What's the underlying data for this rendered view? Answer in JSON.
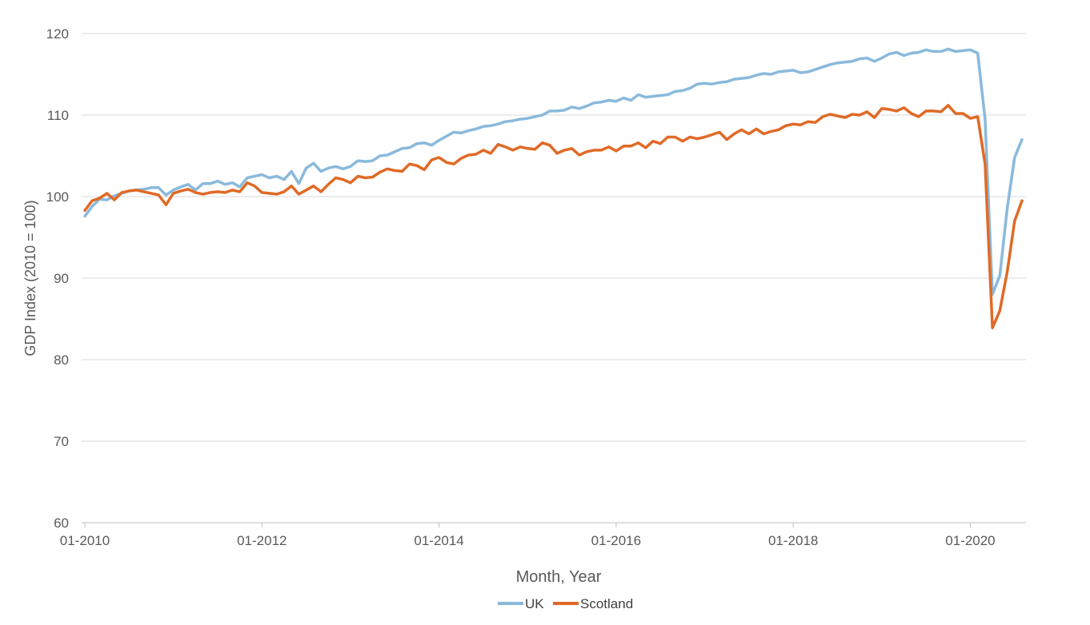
{
  "chart_data": {
    "type": "line",
    "title": "",
    "xlabel": "Month, Year",
    "ylabel": "GDP Index (2010 = 100)",
    "ylim": [
      60,
      120
    ],
    "yticks": [
      60,
      70,
      80,
      90,
      100,
      110,
      120
    ],
    "xticks": [
      {
        "label": "01-2010",
        "index": 0
      },
      {
        "label": "01-2012",
        "index": 24
      },
      {
        "label": "01-2014",
        "index": 48
      },
      {
        "label": "01-2016",
        "index": 72
      },
      {
        "label": "01-2018",
        "index": 96
      },
      {
        "label": "01-2020",
        "index": 120
      }
    ],
    "grid": true,
    "legend": "bottom-center",
    "x_start": "01-2010",
    "x_end": "08-2020",
    "series": [
      {
        "name": "UK",
        "color": "#8ab9dc",
        "values": [
          97.6,
          98.8,
          99.7,
          99.6,
          100.1,
          100.4,
          100.7,
          100.8,
          100.9,
          101.1,
          101.1,
          100.2,
          100.8,
          101.2,
          101.5,
          100.8,
          101.6,
          101.6,
          101.9,
          101.5,
          101.7,
          101.2,
          102.3,
          102.5,
          102.7,
          102.3,
          102.5,
          102.1,
          103.1,
          101.6,
          103.5,
          104.1,
          103.1,
          103.5,
          103.7,
          103.4,
          103.7,
          104.4,
          104.3,
          104.4,
          105.0,
          105.1,
          105.5,
          105.9,
          106.0,
          106.5,
          106.6,
          106.3,
          106.9,
          107.4,
          107.9,
          107.8,
          108.1,
          108.3,
          108.6,
          108.7,
          108.9,
          109.2,
          109.3,
          109.5,
          109.6,
          109.8,
          110.0,
          110.5,
          110.5,
          110.6,
          111.0,
          110.8,
          111.1,
          111.5,
          111.6,
          111.8,
          111.7,
          112.1,
          111.8,
          112.5,
          112.2,
          112.3,
          112.4,
          112.5,
          112.9,
          113.0,
          113.3,
          113.8,
          113.9,
          113.8,
          114.0,
          114.1,
          114.4,
          114.5,
          114.6,
          114.9,
          115.1,
          115.0,
          115.3,
          115.4,
          115.5,
          115.2,
          115.3,
          115.6,
          115.9,
          116.2,
          116.4,
          116.5,
          116.6,
          116.9,
          117.0,
          116.6,
          117.0,
          117.5,
          117.7,
          117.3,
          117.6,
          117.7,
          118.0,
          117.8,
          117.8,
          118.1,
          117.8,
          117.9,
          118.0,
          117.6,
          109.5,
          88.0,
          90.3,
          98.6,
          104.8,
          107.0
        ]
      },
      {
        "name": "Scotland",
        "color": "#e06a26",
        "values": [
          98.3,
          99.5,
          99.8,
          100.4,
          99.6,
          100.5,
          100.7,
          100.8,
          100.6,
          100.4,
          100.2,
          99.0,
          100.4,
          100.7,
          100.9,
          100.5,
          100.3,
          100.5,
          100.6,
          100.5,
          100.8,
          100.6,
          101.7,
          101.3,
          100.5,
          100.4,
          100.3,
          100.6,
          101.3,
          100.3,
          100.8,
          101.3,
          100.6,
          101.5,
          102.3,
          102.1,
          101.7,
          102.5,
          102.3,
          102.4,
          103.0,
          103.4,
          103.2,
          103.1,
          104.0,
          103.8,
          103.3,
          104.5,
          104.8,
          104.2,
          104.0,
          104.7,
          105.1,
          105.2,
          105.7,
          105.3,
          106.4,
          106.1,
          105.7,
          106.1,
          105.9,
          105.8,
          106.6,
          106.3,
          105.3,
          105.7,
          105.9,
          105.1,
          105.5,
          105.7,
          105.7,
          106.1,
          105.6,
          106.2,
          106.2,
          106.6,
          106.0,
          106.8,
          106.5,
          107.3,
          107.3,
          106.8,
          107.3,
          107.1,
          107.3,
          107.6,
          107.9,
          107.0,
          107.7,
          108.2,
          107.7,
          108.3,
          107.7,
          108.0,
          108.2,
          108.7,
          108.9,
          108.8,
          109.2,
          109.1,
          109.8,
          110.1,
          109.9,
          109.7,
          110.1,
          110.0,
          110.4,
          109.7,
          110.8,
          110.7,
          110.5,
          110.9,
          110.2,
          109.8,
          110.5,
          110.5,
          110.4,
          111.2,
          110.2,
          110.2,
          109.6,
          109.8,
          104.0,
          83.9,
          86.0,
          90.8,
          97.0,
          99.5
        ]
      }
    ]
  }
}
